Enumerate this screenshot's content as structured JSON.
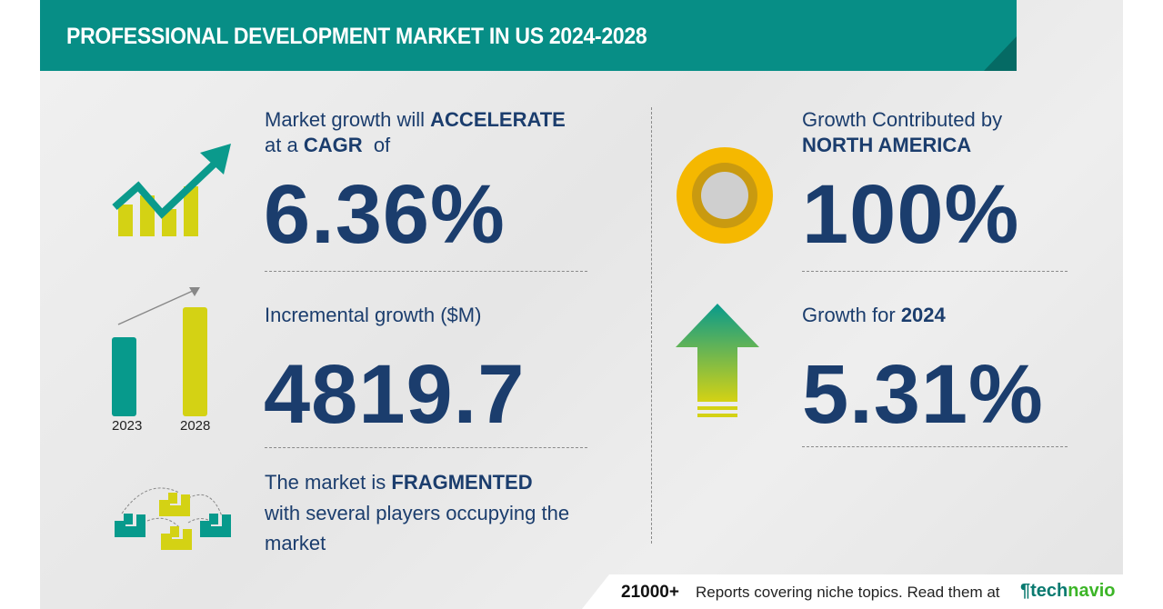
{
  "header": {
    "title": "PROFESSIONAL DEVELOPMENT MARKET IN US 2024-2028"
  },
  "cagr": {
    "line1_pre": "Market growth will ",
    "line1_bold": "ACCELERATE",
    "line2_pre": "at a ",
    "line2_bold": "CAGR",
    "line2_post": "  of",
    "value": "6.36%"
  },
  "incremental": {
    "label": "Incremental growth ($M)",
    "value": "4819.7",
    "years": [
      "2023",
      "2028"
    ]
  },
  "fragmented": {
    "line1_pre": "The market is ",
    "line1_bold": "FRAGMENTED",
    "line2": "with several players occupying the",
    "line3": "market"
  },
  "region": {
    "line1": "Growth Contributed by",
    "line2": "NORTH AMERICA",
    "value": "100%"
  },
  "growth_year": {
    "label_pre": "Growth for ",
    "label_bold": "2024",
    "value": "5.31%"
  },
  "footer": {
    "count": "21000+",
    "text": "Reports covering niche topics. Read them at",
    "logo_a": "tech",
    "logo_b": "navio"
  },
  "colors": {
    "teal": "#078e86",
    "navy": "#1b3d6d",
    "yellow": "#d4d214",
    "gold": "#f5b800"
  }
}
